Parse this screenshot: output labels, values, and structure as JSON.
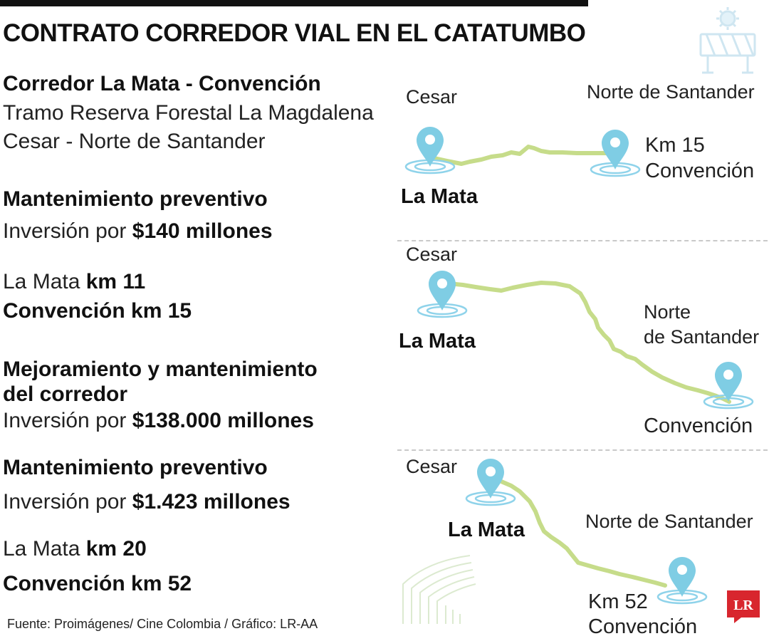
{
  "header": {
    "title": "CONTRATO CORREDOR VIAL EN EL CATATUMBO"
  },
  "left": {
    "corridor_title": "Corredor La Mata - Convención",
    "corridor_line1": "Tramo Reserva Forestal La Magdalena",
    "corridor_line2": "Cesar - Norte de Santander",
    "section1": {
      "heading": "Mantenimiento preventivo",
      "invest_prefix": "Inversión por ",
      "invest_amount": "$140 millones",
      "km_a_prefix": "La Mata ",
      "km_a_value": "km 11",
      "km_b": "Convención km 15"
    },
    "section2": {
      "heading_line1": "Mejoramiento y mantenimiento",
      "heading_line2": "del corredor",
      "invest_prefix": "Inversión por ",
      "invest_amount": "$138.000 millones"
    },
    "section3": {
      "heading": "Mantenimiento preventivo",
      "invest_prefix": "Inversión por ",
      "invest_amount": "$1.423 millones",
      "km_a_prefix": "La Mata ",
      "km_a_value": "km 20",
      "km_b": "Convención km 52"
    }
  },
  "maps": [
    {
      "origin_region": "Cesar",
      "destination_region": "Norte de Santander",
      "origin": "La Mata",
      "dest_km": "Km 15",
      "destination": "Convención"
    },
    {
      "origin_region": "Cesar",
      "destination_region_line1": "Norte",
      "destination_region_line2": "de Santander",
      "origin": "La Mata",
      "destination": "Convención"
    },
    {
      "origin_region": "Cesar",
      "destination_region": "Norte de Santander",
      "origin": "La Mata",
      "dest_km": "Km 52",
      "destination": "Convención"
    }
  ],
  "footer": {
    "source": "Fuente: Proimágenes/ Cine Colombia / Gráfico: LR-AA"
  },
  "logo": {
    "text": "LR"
  },
  "icons": [
    "road-barrier-icon",
    "location-pin-icon",
    "theater-seats-icon",
    "lr-logo"
  ],
  "colors": {
    "route": "#c6dc8a",
    "pin": "#7fcde4",
    "pin_ring": "#8fd3ea",
    "logo_red": "#d8262e",
    "decor": "#d9ecf4"
  }
}
